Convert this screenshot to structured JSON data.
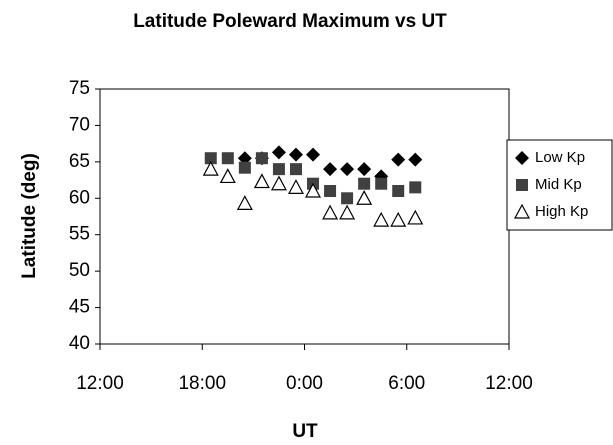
{
  "chart_data": {
    "type": "scatter",
    "title": "Latitude Poleward Maximum vs UT",
    "x_label": "UT",
    "y_label": "Latitude (deg)",
    "xlim": [
      12,
      36
    ],
    "xticks": [
      {
        "value": 12,
        "label": "12:00"
      },
      {
        "value": 18,
        "label": "18:00"
      },
      {
        "value": 24,
        "label": "0:00"
      },
      {
        "value": 30,
        "label": "6:00"
      },
      {
        "value": 36,
        "label": "12:00"
      }
    ],
    "ylim": [
      40,
      75
    ],
    "yticks": [
      40,
      45,
      50,
      55,
      60,
      65,
      70,
      75
    ],
    "grid": false,
    "legend": "right",
    "series": [
      {
        "name": "Low Kp",
        "color": "#000000",
        "marker": "diamond",
        "x": [
          20.5,
          21.5,
          22.5,
          23.5,
          24.5,
          25.5,
          26.5,
          27.5,
          28.5,
          29.5,
          30.5
        ],
        "values": [
          65.5,
          65.5,
          66.3,
          66,
          66,
          64,
          64,
          64,
          63,
          65.3,
          65.3
        ]
      },
      {
        "name": "Mid Kp",
        "color": "#404040",
        "marker": "square",
        "x": [
          18.5,
          19.5,
          20.5,
          21.5,
          22.5,
          23.5,
          24.5,
          25.5,
          26.5,
          27.5,
          28.5,
          29.5,
          30.5
        ],
        "values": [
          65.5,
          65.5,
          64.2,
          65.5,
          64,
          64,
          62,
          61,
          60,
          62,
          62,
          61,
          61.5
        ]
      },
      {
        "name": "High Kp",
        "color": "#000000",
        "marker": "triangle",
        "x": [
          18.5,
          19.5,
          20.5,
          21.5,
          22.5,
          23.5,
          24.5,
          25.5,
          26.5,
          27.5,
          28.5,
          29.5,
          30.5
        ],
        "values": [
          64,
          63,
          59.3,
          62.3,
          62,
          61.5,
          61,
          58,
          58,
          60,
          57,
          57,
          57.3
        ]
      }
    ]
  }
}
